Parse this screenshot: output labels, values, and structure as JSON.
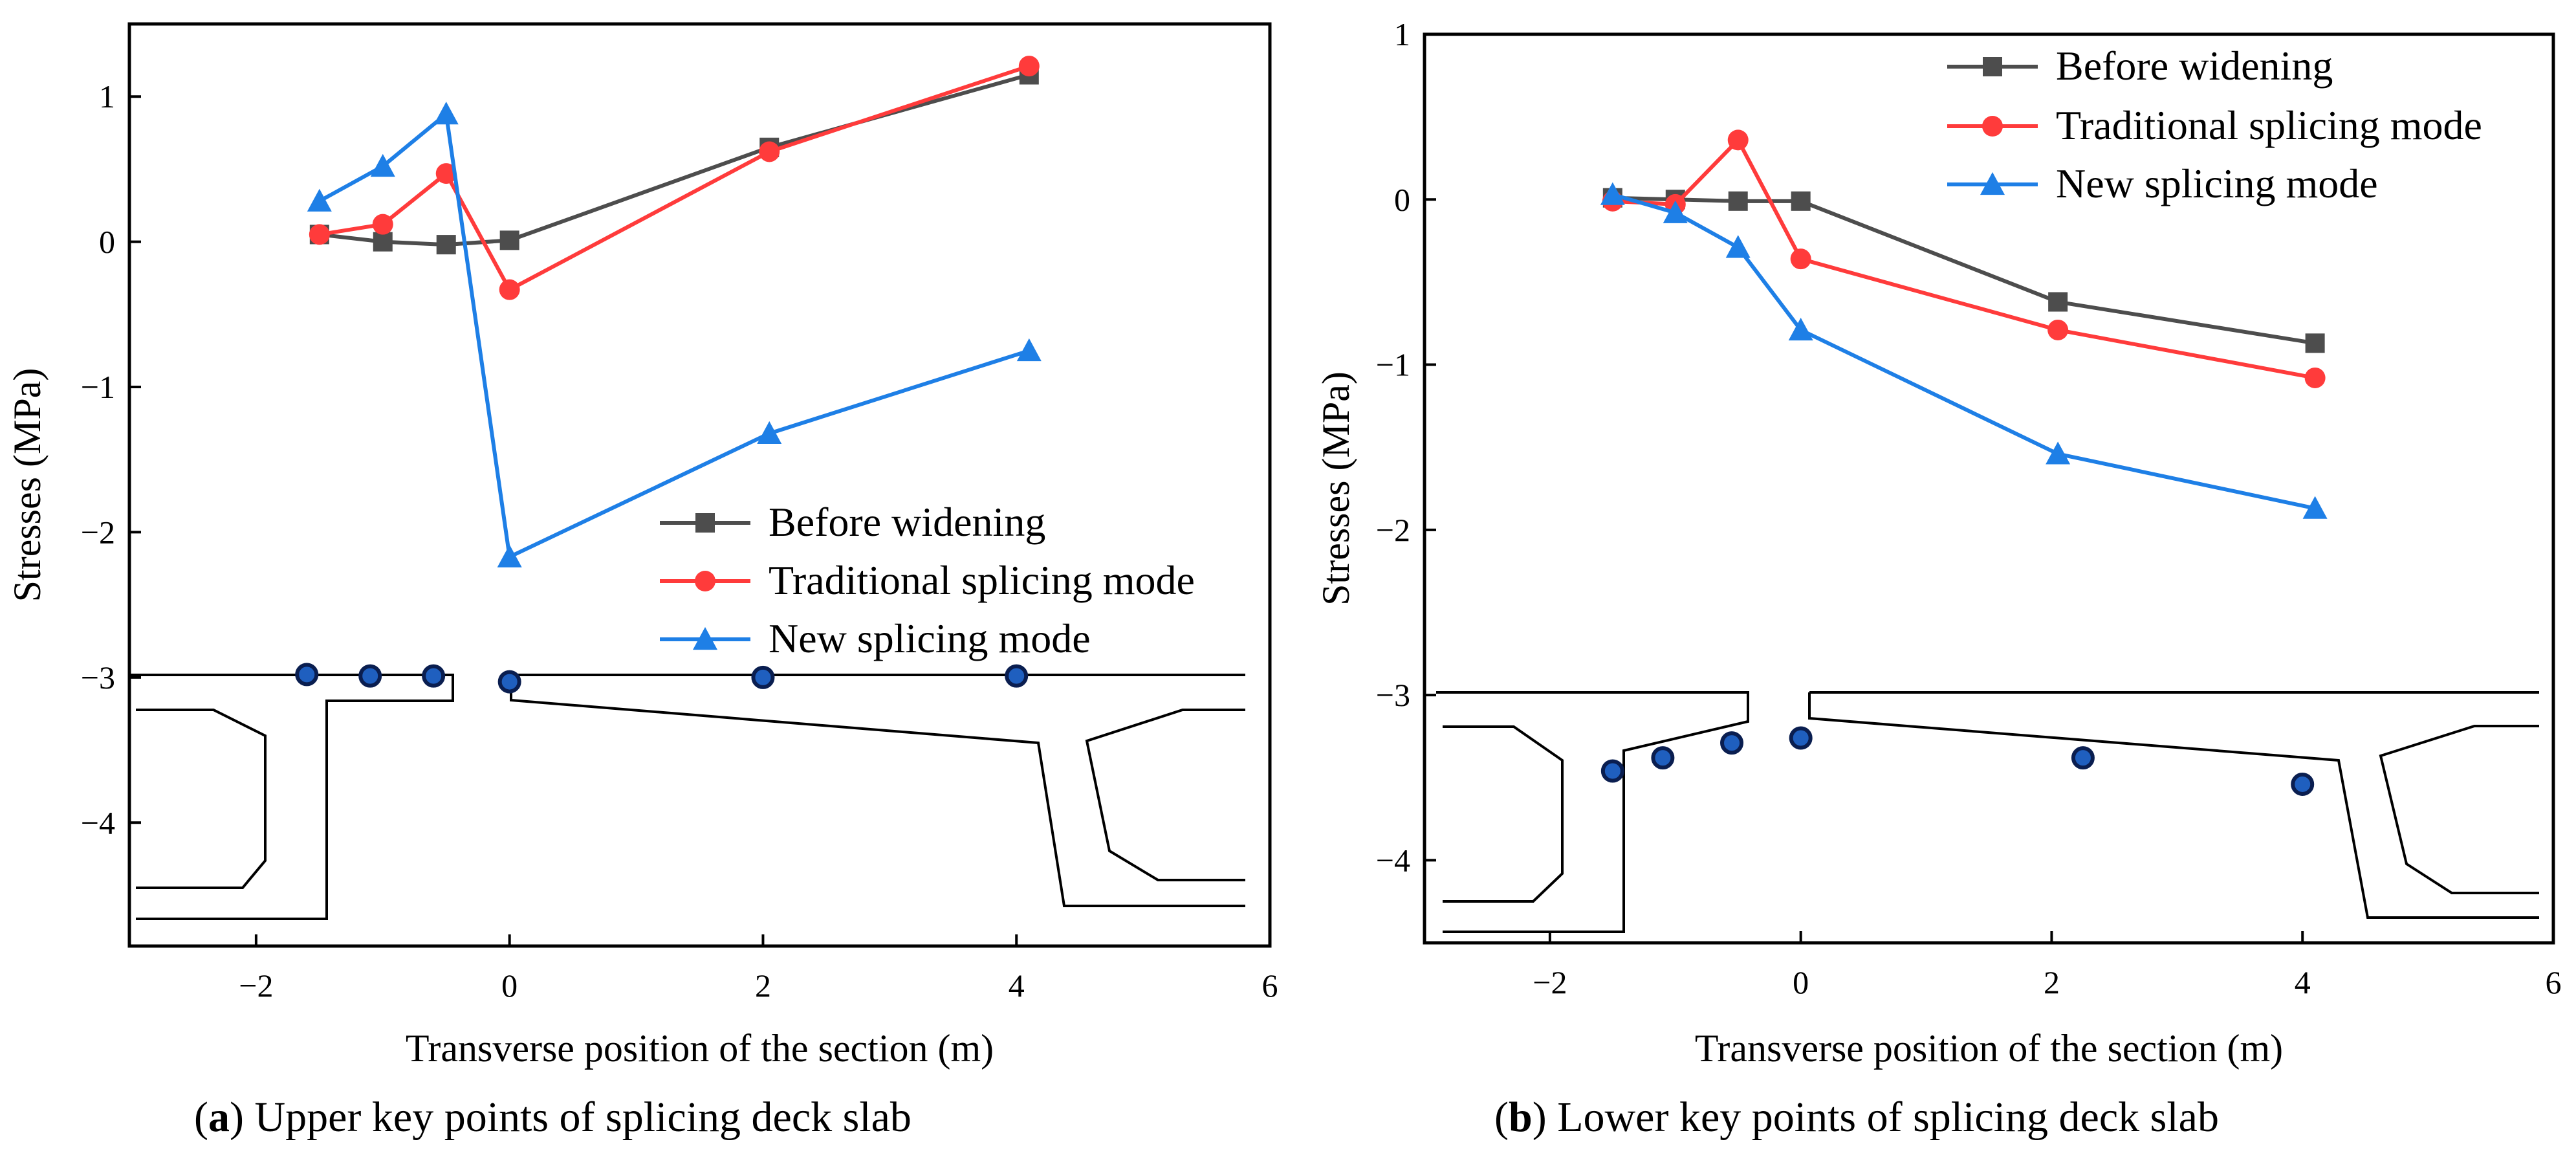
{
  "chart_data": [
    {
      "type": "line",
      "panel_letter": "a",
      "caption_rest": " Upper key points of splicing deck slab",
      "xlabel": "Transverse position of the section (m)",
      "ylabel": "Stresses (MPa)",
      "xlim": [
        -3,
        6
      ],
      "ylim": [
        -4.85,
        1.5
      ],
      "x_ticks": [
        -2,
        0,
        2,
        4,
        6
      ],
      "y_ticks": [
        1,
        0,
        -1,
        -2,
        -3,
        -4
      ],
      "legend_position": "center-right",
      "series": [
        {
          "name": "Before widening",
          "color": "#4d4d4d",
          "marker": "square",
          "points": [
            [
              -1.5,
              0.05
            ],
            [
              -1.0,
              0.0
            ],
            [
              -0.5,
              -0.02
            ],
            [
              0.0,
              0.01
            ],
            [
              2.05,
              0.65
            ],
            [
              4.1,
              1.15
            ]
          ]
        },
        {
          "name": "Traditional splicing mode",
          "color": "#ff3b3b",
          "marker": "circle",
          "points": [
            [
              -1.5,
              0.05
            ],
            [
              -1.0,
              0.12
            ],
            [
              -0.5,
              0.47
            ],
            [
              0.0,
              -0.33
            ],
            [
              2.05,
              0.62
            ],
            [
              4.1,
              1.21
            ]
          ]
        },
        {
          "name": "New splicing mode",
          "color": "#1e7fe6",
          "marker": "triangle",
          "points": [
            [
              -1.5,
              0.28
            ],
            [
              -1.0,
              0.52
            ],
            [
              -0.5,
              0.88
            ],
            [
              0.0,
              -2.17
            ],
            [
              2.05,
              -1.32
            ],
            [
              4.1,
              -0.75
            ]
          ]
        }
      ],
      "key_points": [
        [
          -1.6,
          -2.98
        ],
        [
          -1.1,
          -2.99
        ],
        [
          -0.6,
          -2.99
        ],
        [
          0.0,
          -3.03
        ],
        [
          2.0,
          -3.0
        ],
        [
          4.0,
          -2.99
        ]
      ]
    },
    {
      "type": "line",
      "panel_letter": "b",
      "caption_rest": " Lower key points of splicing deck slab",
      "xlabel": "Transverse position of the section (m)",
      "ylabel": "Stresses (MPa)",
      "xlim": [
        -3,
        6
      ],
      "ylim": [
        -4.5,
        1.0
      ],
      "x_ticks": [
        -2,
        0,
        2,
        4,
        6
      ],
      "y_ticks": [
        1,
        0,
        -1,
        -2,
        -3,
        -4
      ],
      "legend_position": "top-right",
      "series": [
        {
          "name": "Before widening",
          "color": "#4d4d4d",
          "marker": "square",
          "points": [
            [
              -1.5,
              0.01
            ],
            [
              -1.0,
              0.0
            ],
            [
              -0.5,
              -0.01
            ],
            [
              0.0,
              -0.01
            ],
            [
              2.05,
              -0.62
            ],
            [
              4.1,
              -0.87
            ]
          ]
        },
        {
          "name": "Traditional splicing mode",
          "color": "#ff3b3b",
          "marker": "circle",
          "points": [
            [
              -1.5,
              -0.01
            ],
            [
              -1.0,
              -0.03
            ],
            [
              -0.5,
              0.36
            ],
            [
              0.0,
              -0.36
            ],
            [
              2.05,
              -0.79
            ],
            [
              4.1,
              -1.08
            ]
          ]
        },
        {
          "name": "New splicing mode",
          "color": "#1e7fe6",
          "marker": "triangle",
          "points": [
            [
              -1.5,
              0.03
            ],
            [
              -1.0,
              -0.08
            ],
            [
              -0.5,
              -0.29
            ],
            [
              0.0,
              -0.79
            ],
            [
              2.05,
              -1.54
            ],
            [
              4.1,
              -1.87
            ]
          ]
        }
      ],
      "key_points": [
        [
          -1.5,
          -3.46
        ],
        [
          -1.1,
          -3.38
        ],
        [
          -0.55,
          -3.29
        ],
        [
          0.0,
          -3.26
        ],
        [
          2.25,
          -3.38
        ],
        [
          4.0,
          -3.54
        ]
      ]
    }
  ]
}
